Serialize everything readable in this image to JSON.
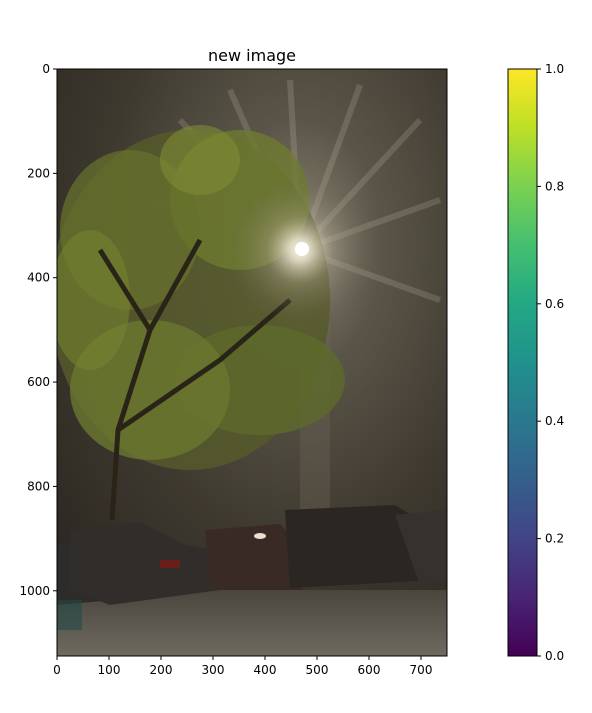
{
  "chart_data": {
    "type": "image",
    "title": "new image",
    "xlabel": "",
    "ylabel": "",
    "image_width": 750,
    "image_height": 1125,
    "xlim": [
      0,
      750
    ],
    "ylim": [
      1125,
      0
    ],
    "x_ticks": [
      0,
      100,
      200,
      300,
      400,
      500,
      600,
      700
    ],
    "y_ticks": [
      0,
      200,
      400,
      600,
      800,
      1000
    ],
    "image_description_colors": {
      "fog_dark": "#2e2a22",
      "fog_mid": "#4a453b",
      "foliage": "#7d8a2e",
      "light": "#f2ecdc",
      "cars": "#2a2826"
    },
    "colorbar": {
      "colormap": "viridis",
      "min": 0.0,
      "max": 1.0,
      "ticks": [
        0.0,
        0.2,
        0.4,
        0.6,
        0.8,
        1.0
      ],
      "tick_labels": [
        "0.0",
        "0.2",
        "0.4",
        "0.6",
        "0.8",
        "1.0"
      ]
    }
  }
}
